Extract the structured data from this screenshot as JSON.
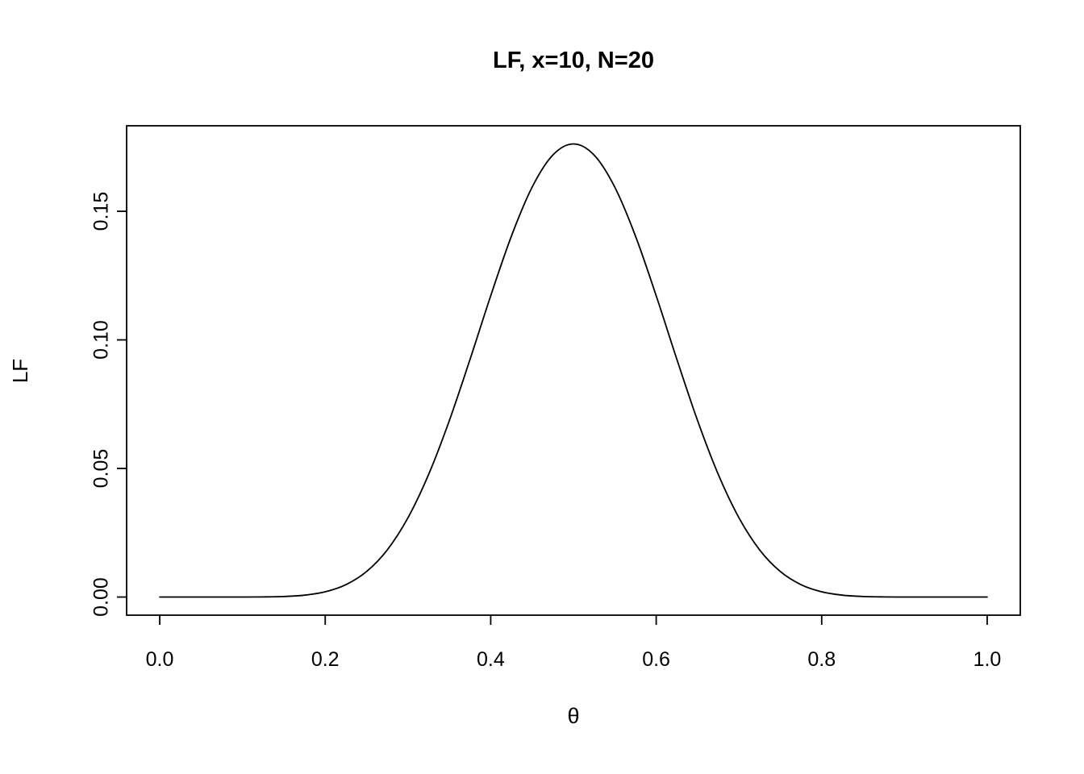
{
  "chart_data": {
    "type": "line",
    "title": "LF, x=10, N=20",
    "xlabel": "θ",
    "ylabel": "LF",
    "series_name": "LF",
    "line_color": "#000000",
    "background_color": "#ffffff",
    "grid": false,
    "legend": "none",
    "xlim": [
      0,
      1
    ],
    "ylim": [
      0,
      0.1762
    ],
    "xticks": [
      0.0,
      0.2,
      0.4,
      0.6,
      0.8,
      1.0
    ],
    "xtick_labels": [
      "0.0",
      "0.2",
      "0.4",
      "0.6",
      "0.8",
      "1.0"
    ],
    "yticks": [
      0.0,
      0.05,
      0.1,
      0.15
    ],
    "ytick_labels": [
      "0.00",
      "0.05",
      "0.10",
      "0.15"
    ],
    "x": [
      0,
      0.025,
      0.05,
      0.075,
      0.1,
      0.125,
      0.15,
      0.175,
      0.2,
      0.225,
      0.25,
      0.275,
      0.3,
      0.325,
      0.35,
      0.375,
      0.4,
      0.425,
      0.45,
      0.475,
      0.5,
      0.525,
      0.55,
      0.575,
      0.6,
      0.625,
      0.65,
      0.675,
      0.7,
      0.725,
      0.75,
      0.775,
      0.8,
      0.825,
      0.85,
      0.875,
      0.9,
      0.925,
      0.95,
      0.975,
      1
    ],
    "y": [
      0,
      0,
      1e-07,
      5e-07,
      6.4e-06,
      4.53e-05,
      0.00021,
      0.000727,
      0.002031,
      0.004802,
      0.009923,
      0.018336,
      0.030818,
      0.047695,
      0.068614,
      0.092408,
      0.117143,
      0.140335,
      0.159351,
      0.171842,
      0.176197,
      0.171842,
      0.159351,
      0.140335,
      0.117143,
      0.092408,
      0.068614,
      0.047695,
      0.030818,
      0.018336,
      0.009923,
      0.004802,
      0.002031,
      0.000727,
      0.00021,
      4.53e-05,
      6.4e-06,
      5e-07,
      1e-07,
      0,
      0
    ]
  }
}
